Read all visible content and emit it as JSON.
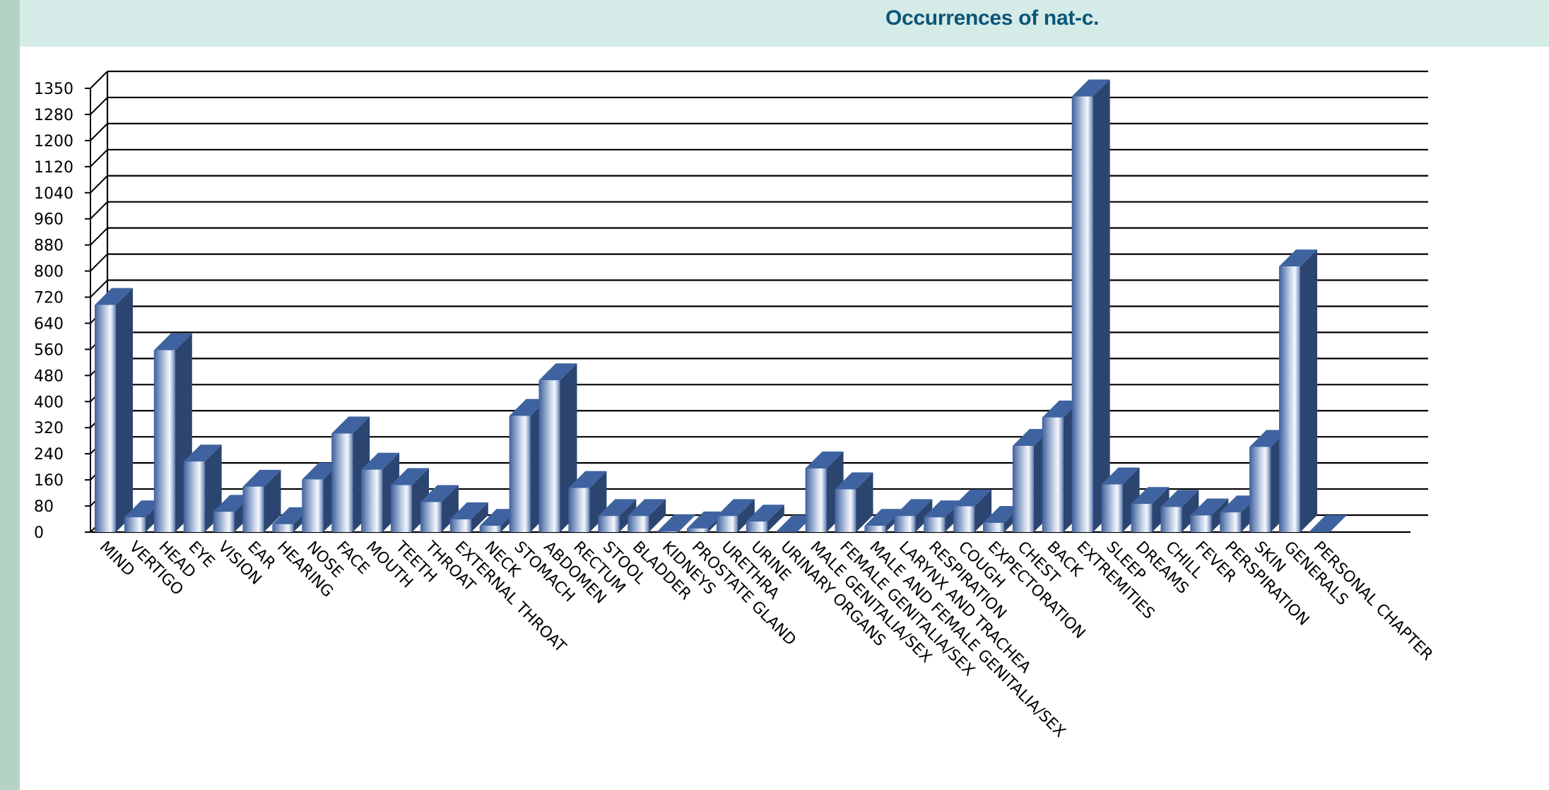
{
  "header": {
    "title": "Occurrences of nat-c."
  },
  "colors": {
    "left_stripe": "#b5d3c5",
    "header_band": "#d5ebe8",
    "title": "#0b5577",
    "bar_front_dark": "#3d5f9c",
    "bar_front_light": "#f2f5fb",
    "bar_top": "#3e63a0",
    "bar_side": "#2c4570",
    "grid": "#000000"
  },
  "chart_data": {
    "type": "bar",
    "style": "3d-column",
    "title": "Occurrences of nat-c.",
    "xlabel": "",
    "ylabel": "",
    "ylim": [
      0,
      1360
    ],
    "grid": true,
    "legend": null,
    "y_tick_labels": [
      "0",
      "80",
      "160",
      "240",
      "320",
      "400",
      "480",
      "560",
      "640",
      "720",
      "800",
      "880",
      "960",
      "1040",
      "1120",
      "1200",
      "1280",
      "1350"
    ],
    "categories": [
      "MIND",
      "VERTIGO",
      "HEAD",
      "EYE",
      "VISION",
      "EAR",
      "HEARING",
      "NOSE",
      "FACE",
      "MOUTH",
      "TEETH",
      "THROAT",
      "EXTERNAL THROAT",
      "NECK",
      "STOMACH",
      "ABDOMEN",
      "RECTUM",
      "STOOL",
      "BLADDER",
      "KIDNEYS",
      "PROSTATE GLAND",
      "URETHRA",
      "URINE",
      "URINARY ORGANS",
      "MALE GENITALIA/SEX",
      "FEMALE GENITALIA/SEX",
      "MALE AND FEMALE GENITALIA/SEX",
      "LARYNX AND TRACHEA",
      "RESPIRATION",
      "COUGH",
      "EXPECTORATION",
      "CHEST",
      "BACK",
      "EXTREMITIES",
      "SLEEP",
      "DREAMS",
      "CHILL",
      "FEVER",
      "PERSPIRATION",
      "SKIN",
      "GENERALS",
      "PERSONAL CHAPTER"
    ],
    "values": [
      696,
      45,
      557,
      216,
      62,
      139,
      24,
      161,
      302,
      191,
      144,
      92,
      39,
      19,
      356,
      465,
      135,
      49,
      49,
      2,
      11,
      49,
      32,
      0,
      195,
      131,
      19,
      49,
      45,
      79,
      28,
      264,
      351,
      1335,
      146,
      86,
      77,
      51,
      60,
      261,
      814,
      0
    ]
  }
}
